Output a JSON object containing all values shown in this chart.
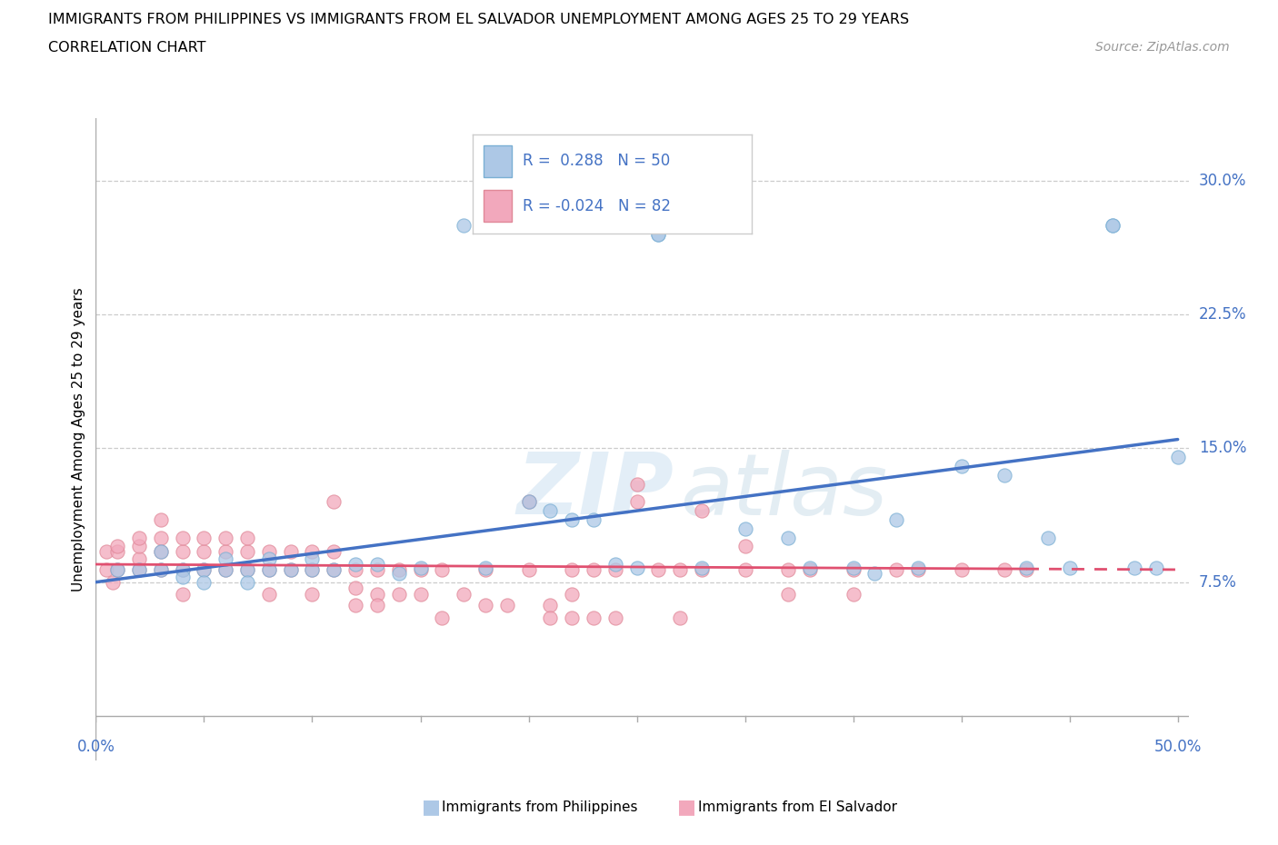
{
  "title_line1": "IMMIGRANTS FROM PHILIPPINES VS IMMIGRANTS FROM EL SALVADOR UNEMPLOYMENT AMONG AGES 25 TO 29 YEARS",
  "title_line2": "CORRELATION CHART",
  "source_text": "Source: ZipAtlas.com",
  "ylabel": "Unemployment Among Ages 25 to 29 years",
  "color_philippines": "#adc8e6",
  "color_philippines_edge": "#7aafd4",
  "color_el_salvador": "#f2a8bc",
  "color_el_salvador_edge": "#e08898",
  "color_line_philippines": "#4472c4",
  "color_line_el_salvador": "#e05070",
  "color_axis": "#aaaaaa",
  "color_grid": "#cccccc",
  "color_tick_label": "#4472c4",
  "xlim_min": 0.0,
  "xlim_max": 0.505,
  "ylim_min": -0.025,
  "ylim_max": 0.335,
  "yticks": [
    0.075,
    0.15,
    0.225,
    0.3
  ],
  "ytick_labels": [
    "7.5%",
    "15.0%",
    "22.5%",
    "30.0%"
  ],
  "line_phil_x0": 0.0,
  "line_phil_y0": 0.075,
  "line_phil_x1": 0.5,
  "line_phil_y1": 0.155,
  "line_elsal_x0": 0.0,
  "line_elsal_y0": 0.085,
  "line_elsal_x1": 0.5,
  "line_elsal_y1": 0.082,
  "philippines_scatter": [
    [
      0.01,
      0.082
    ],
    [
      0.02,
      0.082
    ],
    [
      0.03,
      0.082
    ],
    [
      0.03,
      0.092
    ],
    [
      0.04,
      0.082
    ],
    [
      0.04,
      0.078
    ],
    [
      0.05,
      0.082
    ],
    [
      0.05,
      0.075
    ],
    [
      0.06,
      0.082
    ],
    [
      0.06,
      0.088
    ],
    [
      0.07,
      0.082
    ],
    [
      0.07,
      0.075
    ],
    [
      0.08,
      0.082
    ],
    [
      0.08,
      0.088
    ],
    [
      0.09,
      0.082
    ],
    [
      0.1,
      0.082
    ],
    [
      0.1,
      0.088
    ],
    [
      0.11,
      0.082
    ],
    [
      0.12,
      0.085
    ],
    [
      0.13,
      0.085
    ],
    [
      0.14,
      0.08
    ],
    [
      0.17,
      0.275
    ],
    [
      0.2,
      0.12
    ],
    [
      0.21,
      0.115
    ],
    [
      0.22,
      0.11
    ],
    [
      0.23,
      0.11
    ],
    [
      0.24,
      0.085
    ],
    [
      0.25,
      0.083
    ],
    [
      0.26,
      0.27
    ],
    [
      0.26,
      0.27
    ],
    [
      0.3,
      0.105
    ],
    [
      0.32,
      0.1
    ],
    [
      0.33,
      0.083
    ],
    [
      0.35,
      0.083
    ],
    [
      0.36,
      0.08
    ],
    [
      0.37,
      0.11
    ],
    [
      0.4,
      0.14
    ],
    [
      0.43,
      0.083
    ],
    [
      0.44,
      0.1
    ],
    [
      0.47,
      0.275
    ],
    [
      0.47,
      0.275
    ],
    [
      0.48,
      0.083
    ],
    [
      0.49,
      0.083
    ],
    [
      0.5,
      0.145
    ],
    [
      0.15,
      0.083
    ],
    [
      0.18,
      0.083
    ],
    [
      0.28,
      0.083
    ],
    [
      0.38,
      0.083
    ],
    [
      0.42,
      0.135
    ],
    [
      0.45,
      0.083
    ]
  ],
  "el_salvador_scatter": [
    [
      0.005,
      0.082
    ],
    [
      0.005,
      0.092
    ],
    [
      0.008,
      0.075
    ],
    [
      0.01,
      0.082
    ],
    [
      0.01,
      0.092
    ],
    [
      0.01,
      0.095
    ],
    [
      0.02,
      0.082
    ],
    [
      0.02,
      0.088
    ],
    [
      0.02,
      0.095
    ],
    [
      0.02,
      0.1
    ],
    [
      0.03,
      0.082
    ],
    [
      0.03,
      0.092
    ],
    [
      0.03,
      0.1
    ],
    [
      0.03,
      0.11
    ],
    [
      0.04,
      0.082
    ],
    [
      0.04,
      0.092
    ],
    [
      0.04,
      0.1
    ],
    [
      0.04,
      0.068
    ],
    [
      0.05,
      0.082
    ],
    [
      0.05,
      0.092
    ],
    [
      0.05,
      0.1
    ],
    [
      0.06,
      0.082
    ],
    [
      0.06,
      0.092
    ],
    [
      0.06,
      0.1
    ],
    [
      0.07,
      0.082
    ],
    [
      0.07,
      0.092
    ],
    [
      0.07,
      0.1
    ],
    [
      0.08,
      0.082
    ],
    [
      0.08,
      0.092
    ],
    [
      0.08,
      0.068
    ],
    [
      0.09,
      0.082
    ],
    [
      0.09,
      0.092
    ],
    [
      0.1,
      0.082
    ],
    [
      0.1,
      0.092
    ],
    [
      0.1,
      0.068
    ],
    [
      0.11,
      0.082
    ],
    [
      0.11,
      0.092
    ],
    [
      0.11,
      0.12
    ],
    [
      0.12,
      0.082
    ],
    [
      0.12,
      0.072
    ],
    [
      0.12,
      0.062
    ],
    [
      0.13,
      0.082
    ],
    [
      0.13,
      0.068
    ],
    [
      0.13,
      0.062
    ],
    [
      0.14,
      0.082
    ],
    [
      0.14,
      0.068
    ],
    [
      0.15,
      0.082
    ],
    [
      0.15,
      0.068
    ],
    [
      0.16,
      0.082
    ],
    [
      0.16,
      0.055
    ],
    [
      0.17,
      0.068
    ],
    [
      0.18,
      0.082
    ],
    [
      0.18,
      0.062
    ],
    [
      0.19,
      0.062
    ],
    [
      0.2,
      0.082
    ],
    [
      0.2,
      0.12
    ],
    [
      0.21,
      0.062
    ],
    [
      0.21,
      0.055
    ],
    [
      0.22,
      0.082
    ],
    [
      0.22,
      0.068
    ],
    [
      0.22,
      0.055
    ],
    [
      0.23,
      0.082
    ],
    [
      0.23,
      0.055
    ],
    [
      0.24,
      0.082
    ],
    [
      0.24,
      0.055
    ],
    [
      0.25,
      0.13
    ],
    [
      0.25,
      0.12
    ],
    [
      0.26,
      0.082
    ],
    [
      0.27,
      0.082
    ],
    [
      0.27,
      0.055
    ],
    [
      0.28,
      0.082
    ],
    [
      0.28,
      0.115
    ],
    [
      0.3,
      0.082
    ],
    [
      0.3,
      0.095
    ],
    [
      0.32,
      0.082
    ],
    [
      0.32,
      0.068
    ],
    [
      0.33,
      0.082
    ],
    [
      0.35,
      0.082
    ],
    [
      0.35,
      0.068
    ],
    [
      0.37,
      0.082
    ],
    [
      0.38,
      0.082
    ],
    [
      0.4,
      0.082
    ],
    [
      0.42,
      0.082
    ],
    [
      0.43,
      0.082
    ]
  ]
}
